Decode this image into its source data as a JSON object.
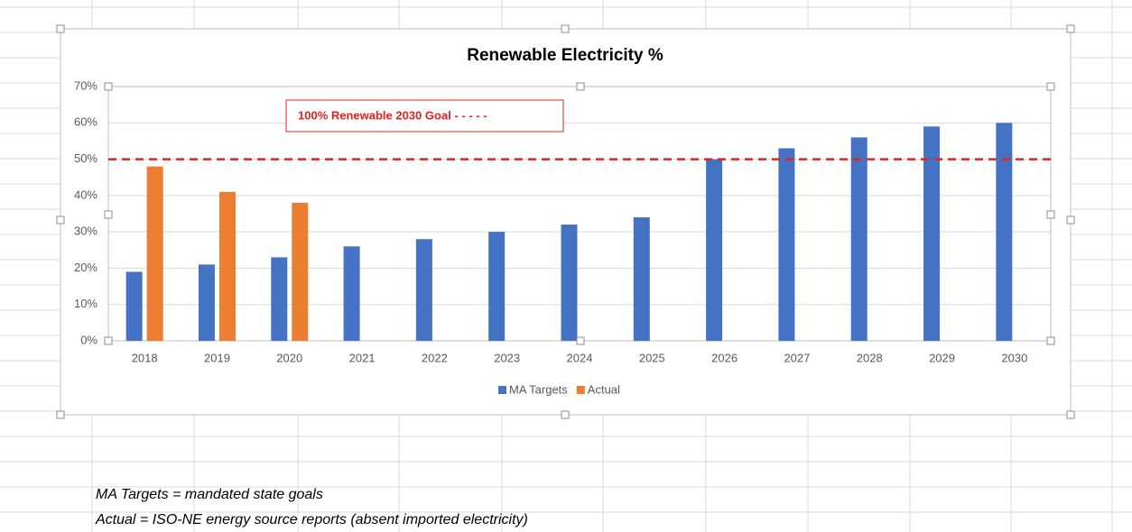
{
  "chart_data": {
    "type": "bar",
    "title": "Renewable Electricity %",
    "categories": [
      "2018",
      "2019",
      "2020",
      "2021",
      "2022",
      "2023",
      "2024",
      "2025",
      "2026",
      "2027",
      "2028",
      "2029",
      "2030"
    ],
    "series": [
      {
        "name": "MA Targets",
        "color": "#4472c4",
        "values": [
          19,
          21,
          23,
          26,
          28,
          30,
          32,
          34,
          50,
          53,
          56,
          59,
          60
        ]
      },
      {
        "name": "Actual",
        "color": "#ed7d31",
        "values": [
          48,
          41,
          38,
          null,
          null,
          null,
          null,
          null,
          null,
          null,
          null,
          null,
          null
        ]
      }
    ],
    "ylim": [
      0,
      70
    ],
    "yticks": [
      {
        "value": 0,
        "label": "0%"
      },
      {
        "value": 10,
        "label": "10%"
      },
      {
        "value": 20,
        "label": "20%"
      },
      {
        "value": 30,
        "label": "30%"
      },
      {
        "value": 40,
        "label": "40%"
      },
      {
        "value": 50,
        "label": "50%"
      },
      {
        "value": 60,
        "label": "60%"
      },
      {
        "value": 70,
        "label": "70%"
      }
    ],
    "grid": true,
    "legend": "bottom",
    "goal_line": {
      "value": 50,
      "color": "#e8211e",
      "label": "100% Renewable 2030 Goal - - - - -"
    },
    "notes": [
      "MA Targets = mandated state goals",
      "Actual = ISO-NE energy source reports (absent imported electricity)"
    ]
  }
}
